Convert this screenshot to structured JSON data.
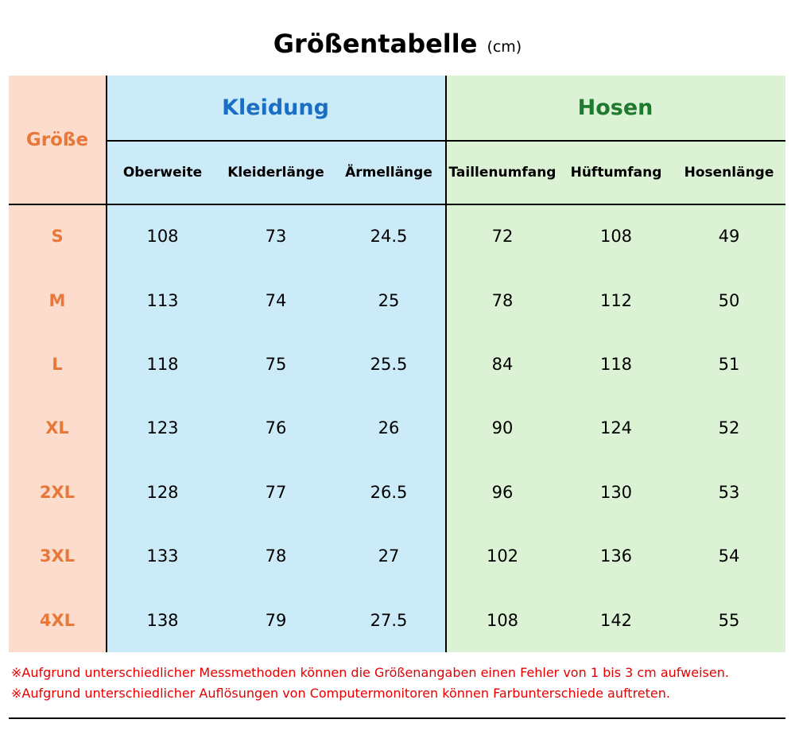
{
  "header": {
    "title": "Größentabelle",
    "unit": "(cm)"
  },
  "table": {
    "size_header": "Größe",
    "groups": [
      "Kleidung",
      "Hosen"
    ],
    "columns": [
      "Oberweite",
      "Kleiderlänge",
      "Ärmellänge",
      "Taillenumfang",
      "Hüftumfang",
      "Hosenlänge"
    ],
    "rows": [
      [
        "S",
        "108",
        "73",
        "24.5",
        "72",
        "108",
        "49"
      ],
      [
        "M",
        "113",
        "74",
        "25",
        "78",
        "112",
        "50"
      ],
      [
        "L",
        "118",
        "75",
        "25.5",
        "84",
        "118",
        "51"
      ],
      [
        "XL",
        "123",
        "76",
        "26",
        "90",
        "124",
        "52"
      ],
      [
        "2XL",
        "128",
        "77",
        "26.5",
        "96",
        "130",
        "53"
      ],
      [
        "3XL",
        "133",
        "78",
        "27",
        "102",
        "136",
        "54"
      ],
      [
        "4XL",
        "138",
        "79",
        "27.5",
        "108",
        "142",
        "55"
      ]
    ]
  },
  "notes": [
    "※Aufgrund unterschiedlicher Messmethoden können die Größenangaben einen Fehler von 1 bis 3 cm aufweisen.",
    "※Aufgrund unterschiedlicher Auflösungen von Computermonitoren können Farbunterschiede auftreten."
  ]
}
